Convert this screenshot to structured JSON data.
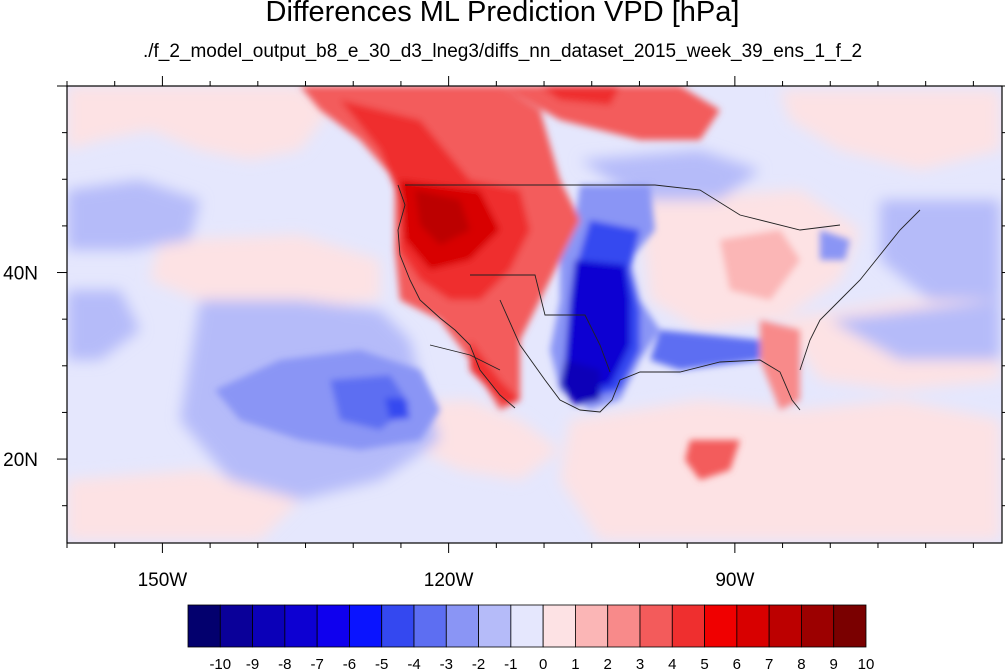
{
  "title": "Differences ML Prediction VPD [hPa]",
  "subtitle": "./f_2_model_output_b8_e_30_d3_lneg3/diffs_nn_dataset_2015_week_39_ens_1_f_2",
  "map": {
    "projection": "cylindrical equidistant",
    "lon_range": [
      -160,
      -62
    ],
    "lat_range": [
      11,
      60
    ],
    "x_ticks": [
      {
        "lon": -150,
        "label": "150W"
      },
      {
        "lon": -120,
        "label": "120W"
      },
      {
        "lon": -90,
        "label": "90W"
      }
    ],
    "y_ticks": [
      {
        "lat": 40,
        "label": "40N"
      },
      {
        "lat": 20,
        "label": "20N"
      }
    ]
  },
  "colorbar": {
    "levels": [
      "-10",
      "-9",
      "-8",
      "-7",
      "-6",
      "-5",
      "-4",
      "-3",
      "-2",
      "-1",
      "0",
      "1",
      "2",
      "3",
      "4",
      "5",
      "6",
      "7",
      "8",
      "9",
      "10"
    ],
    "colors": [
      "#03006e",
      "#0a0099",
      "#0b00b8",
      "#0d00d2",
      "#0f00ee",
      "#0a14ff",
      "#3448f0",
      "#5d6ef2",
      "#8a95f5",
      "#b5bbf9",
      "#e5e7fd",
      "#fde2e4",
      "#fbb6b6",
      "#f88a8a",
      "#f35b5b",
      "#ef2f2f",
      "#f00000",
      "#d80000",
      "#bc0000",
      "#9c0000",
      "#7a0000"
    ]
  }
}
